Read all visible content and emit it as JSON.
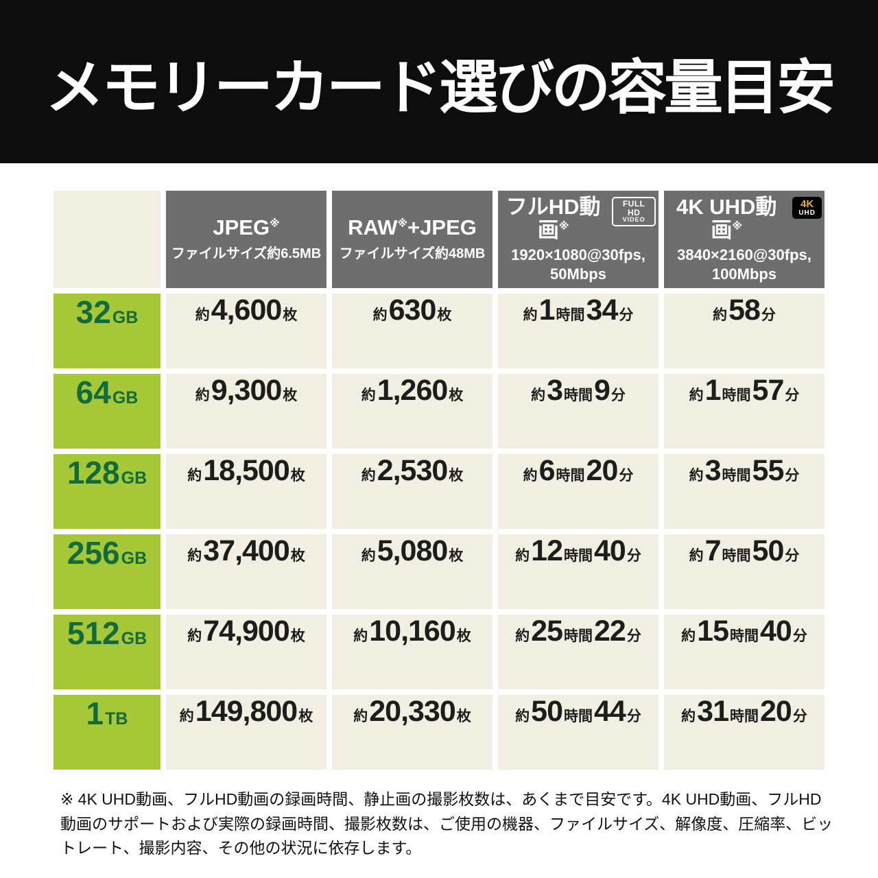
{
  "page": {
    "title": "メモリーカード選びの容量目安",
    "footnote": "※ 4K UHD動画、フルHD動画の録画時間、静止画の撮影枚数は、あくまで目安です。4K UHD動画、フルHD動画のサポートおよび実際の録画時間、撮影枚数は、ご使用の機器、ファイルサイズ、解像度、圧縮率、ビットレート、撮影内容、その他の状況に依存します。"
  },
  "colors": {
    "banner_bg": "#0d0d0d",
    "banner_text": "#ffffff",
    "column_header_bg": "#6e6e6e",
    "capacity_bg": "#a6c836",
    "capacity_text": "#116b3a",
    "cell_bg": "#f0efe1",
    "cell_text": "#1d1d1b",
    "badge_4k_accent": "#e7b416"
  },
  "chart_data": {
    "type": "table",
    "title": "メモリーカード選びの容量目安",
    "columns": [
      {
        "title": "JPEG",
        "note_mark": "※",
        "title_suffix": "",
        "badge_lines": [],
        "subtitle_lines": [
          "ファイルサイズ約6.5MB"
        ]
      },
      {
        "title": "RAW",
        "note_mark": "※",
        "title_suffix": "+JPEG",
        "badge_lines": [],
        "subtitle_lines": [
          "ファイルサイズ約48MB"
        ]
      },
      {
        "title": "フルHD動画",
        "note_mark": "※",
        "title_suffix": "",
        "badge_lines": [
          "FULL HD",
          "VIDEO"
        ],
        "subtitle_lines": [
          "1920×1080@30fps,",
          "50Mbps"
        ]
      },
      {
        "title": "4K UHD動画",
        "note_mark": "※",
        "title_suffix": "",
        "badge_lines": [
          "4K",
          "UHD"
        ],
        "subtitle_lines": [
          "3840×2160@30fps,",
          "100Mbps"
        ]
      }
    ],
    "rows": [
      {
        "capacity": "32",
        "capacity_unit": "GB",
        "cells": [
          [
            [
              "約",
              "s"
            ],
            [
              "4,600",
              "b"
            ],
            [
              "枚",
              "s"
            ]
          ],
          [
            [
              "約",
              "s"
            ],
            [
              "630",
              "b"
            ],
            [
              "枚",
              "s"
            ]
          ],
          [
            [
              "約",
              "s"
            ],
            [
              "1",
              "b"
            ],
            [
              "時間",
              "s"
            ],
            [
              "34",
              "b"
            ],
            [
              "分",
              "s"
            ]
          ],
          [
            [
              "約",
              "s"
            ],
            [
              "58",
              "b"
            ],
            [
              "分",
              "s"
            ]
          ]
        ]
      },
      {
        "capacity": "64",
        "capacity_unit": "GB",
        "cells": [
          [
            [
              "約",
              "s"
            ],
            [
              "9,300",
              "b"
            ],
            [
              "枚",
              "s"
            ]
          ],
          [
            [
              "約",
              "s"
            ],
            [
              "1,260",
              "b"
            ],
            [
              "枚",
              "s"
            ]
          ],
          [
            [
              "約",
              "s"
            ],
            [
              "3",
              "b"
            ],
            [
              "時間",
              "s"
            ],
            [
              "9",
              "b"
            ],
            [
              "分",
              "s"
            ]
          ],
          [
            [
              "約",
              "s"
            ],
            [
              "1",
              "b"
            ],
            [
              "時間",
              "s"
            ],
            [
              "57",
              "b"
            ],
            [
              "分",
              "s"
            ]
          ]
        ]
      },
      {
        "capacity": "128",
        "capacity_unit": "GB",
        "cells": [
          [
            [
              "約",
              "s"
            ],
            [
              "18,500",
              "b"
            ],
            [
              "枚",
              "s"
            ]
          ],
          [
            [
              "約",
              "s"
            ],
            [
              "2,530",
              "b"
            ],
            [
              "枚",
              "s"
            ]
          ],
          [
            [
              "約",
              "s"
            ],
            [
              "6",
              "b"
            ],
            [
              "時間",
              "s"
            ],
            [
              "20",
              "b"
            ],
            [
              "分",
              "s"
            ]
          ],
          [
            [
              "約",
              "s"
            ],
            [
              "3",
              "b"
            ],
            [
              "時間",
              "s"
            ],
            [
              "55",
              "b"
            ],
            [
              "分",
              "s"
            ]
          ]
        ]
      },
      {
        "capacity": "256",
        "capacity_unit": "GB",
        "cells": [
          [
            [
              "約",
              "s"
            ],
            [
              "37,400",
              "b"
            ],
            [
              "枚",
              "s"
            ]
          ],
          [
            [
              "約",
              "s"
            ],
            [
              "5,080",
              "b"
            ],
            [
              "枚",
              "s"
            ]
          ],
          [
            [
              "約",
              "s"
            ],
            [
              "12",
              "b"
            ],
            [
              "時間",
              "s"
            ],
            [
              "40",
              "b"
            ],
            [
              "分",
              "s"
            ]
          ],
          [
            [
              "約",
              "s"
            ],
            [
              "7",
              "b"
            ],
            [
              "時間",
              "s"
            ],
            [
              "50",
              "b"
            ],
            [
              "分",
              "s"
            ]
          ]
        ]
      },
      {
        "capacity": "512",
        "capacity_unit": "GB",
        "cells": [
          [
            [
              "約",
              "s"
            ],
            [
              "74,900",
              "b"
            ],
            [
              "枚",
              "s"
            ]
          ],
          [
            [
              "約",
              "s"
            ],
            [
              "10,160",
              "b"
            ],
            [
              "枚",
              "s"
            ]
          ],
          [
            [
              "約",
              "s"
            ],
            [
              "25",
              "b"
            ],
            [
              "時間",
              "s"
            ],
            [
              "22",
              "b"
            ],
            [
              "分",
              "s"
            ]
          ],
          [
            [
              "約",
              "s"
            ],
            [
              "15",
              "b"
            ],
            [
              "時間",
              "s"
            ],
            [
              "40",
              "b"
            ],
            [
              "分",
              "s"
            ]
          ]
        ]
      },
      {
        "capacity": "1",
        "capacity_unit": "TB",
        "cells": [
          [
            [
              "約",
              "s"
            ],
            [
              "149,800",
              "b"
            ],
            [
              "枚",
              "s"
            ]
          ],
          [
            [
              "約",
              "s"
            ],
            [
              "20,330",
              "b"
            ],
            [
              "枚",
              "s"
            ]
          ],
          [
            [
              "約",
              "s"
            ],
            [
              "50",
              "b"
            ],
            [
              "時間",
              "s"
            ],
            [
              "44",
              "b"
            ],
            [
              "分",
              "s"
            ]
          ],
          [
            [
              "約",
              "s"
            ],
            [
              "31",
              "b"
            ],
            [
              "時間",
              "s"
            ],
            [
              "20",
              "b"
            ],
            [
              "分",
              "s"
            ]
          ]
        ]
      }
    ]
  }
}
